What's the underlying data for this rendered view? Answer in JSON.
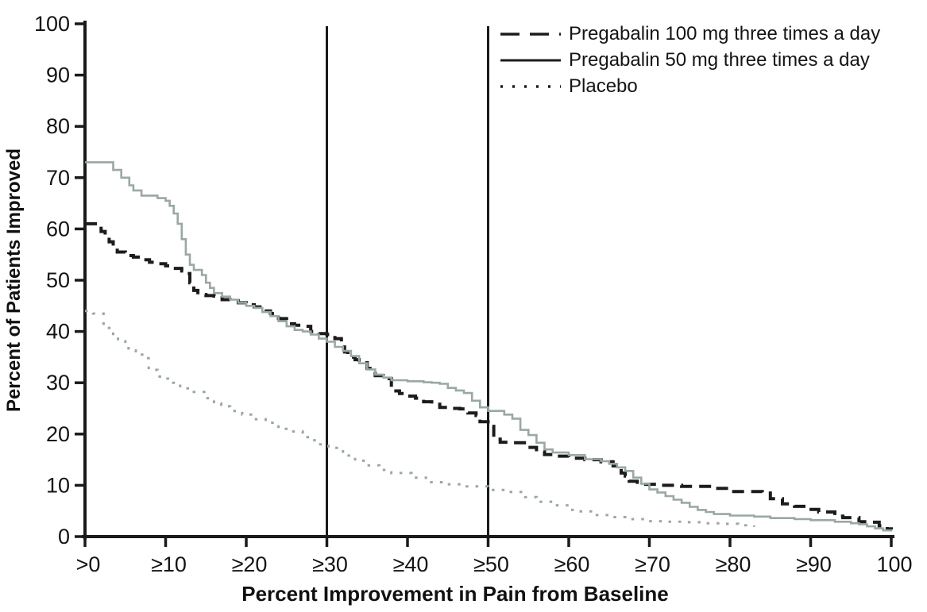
{
  "figure": {
    "background": "#ffffff",
    "axis_color": "#1a1a1a"
  },
  "legend": {
    "sample_color": "#1c1c1c",
    "items": [
      "Pregabalin 100 mg three times a day",
      "Pregabalin 50 mg three times a day",
      "Placebo"
    ]
  },
  "chart_data": {
    "type": "line",
    "title": "",
    "xlabel": "Percent Improvement in Pain from Baseline",
    "ylabel": "Percent of Patients Improved",
    "xlim": [
      0,
      100
    ],
    "ylim": [
      0,
      100
    ],
    "grid": false,
    "legend_position": "top-right",
    "interpolation": "step-after",
    "x_ticks": [
      0,
      10,
      20,
      30,
      40,
      50,
      60,
      70,
      80,
      90,
      100
    ],
    "x_tick_labels": [
      ">0",
      "≥10",
      "≥20",
      "≥30",
      "≥40",
      "≥50",
      "≥60",
      "≥70",
      "≥80",
      "≥90",
      "100"
    ],
    "y_ticks": [
      0,
      10,
      20,
      30,
      40,
      50,
      60,
      70,
      80,
      90,
      100
    ],
    "y_tick_labels": [
      "0",
      "10",
      "20",
      "30",
      "40",
      "50",
      "60",
      "70",
      "80",
      "90",
      "100"
    ],
    "reference_lines_x": [
      30,
      50
    ],
    "series": [
      {
        "id": "pregabalin-100mg",
        "name": "Pregabalin 100 mg three times a day",
        "style": "dashed",
        "color": "#1c1c1c",
        "points": [
          [
            0,
            61
          ],
          [
            1.2,
            61
          ],
          [
            2,
            59.5
          ],
          [
            2.5,
            58.5
          ],
          [
            3,
            57.5
          ],
          [
            3.5,
            56.5
          ],
          [
            4,
            55.5
          ],
          [
            5,
            54.8
          ],
          [
            6,
            54.5
          ],
          [
            7,
            54
          ],
          [
            8,
            53.5
          ],
          [
            9,
            53.2
          ],
          [
            10,
            52.8
          ],
          [
            11,
            52.3
          ],
          [
            12,
            51.8
          ],
          [
            12.5,
            51.3
          ],
          [
            13,
            49.5
          ],
          [
            13.5,
            48
          ],
          [
            14,
            47.2
          ],
          [
            15,
            47
          ],
          [
            16,
            46.9
          ],
          [
            17,
            46.2
          ],
          [
            18,
            46
          ],
          [
            19,
            45.6
          ],
          [
            20,
            45.2
          ],
          [
            21,
            44.8
          ],
          [
            22,
            44
          ],
          [
            23,
            43.5
          ],
          [
            24,
            42.5
          ],
          [
            25,
            41.5
          ],
          [
            26,
            41.2
          ],
          [
            27,
            41
          ],
          [
            28,
            40
          ],
          [
            29,
            39.6
          ],
          [
            30,
            39.4
          ],
          [
            31,
            38.6
          ],
          [
            31.8,
            37.6
          ],
          [
            32.2,
            36
          ],
          [
            32.6,
            35
          ],
          [
            33.5,
            34.5
          ],
          [
            34,
            33.9
          ],
          [
            35,
            32.8
          ],
          [
            36,
            31.4
          ],
          [
            37,
            30.8
          ],
          [
            38,
            28.4
          ],
          [
            39,
            27.9
          ],
          [
            40,
            27.4
          ],
          [
            41,
            27
          ],
          [
            42,
            26.3
          ],
          [
            43,
            25.8
          ],
          [
            44,
            25.2
          ],
          [
            45,
            25
          ],
          [
            46.5,
            24.9
          ],
          [
            47.5,
            24.1
          ],
          [
            48.5,
            23.6
          ],
          [
            49,
            22.4
          ],
          [
            50,
            21.5
          ],
          [
            50.7,
            19
          ],
          [
            51.5,
            18.4
          ],
          [
            53,
            18.3
          ],
          [
            54.5,
            17.4
          ],
          [
            56,
            16.6
          ],
          [
            57,
            16
          ],
          [
            58,
            15.7
          ],
          [
            60,
            15.3
          ],
          [
            62,
            15
          ],
          [
            64,
            14.6
          ],
          [
            65.5,
            13.8
          ],
          [
            66.5,
            12.4
          ],
          [
            67,
            11.8
          ],
          [
            67.5,
            10.8
          ],
          [
            68.5,
            10.2
          ],
          [
            71,
            10
          ],
          [
            74,
            9.8
          ],
          [
            78,
            9.4
          ],
          [
            80,
            8.8
          ],
          [
            84,
            8.5
          ],
          [
            85,
            7.4
          ],
          [
            86.5,
            6.4
          ],
          [
            88,
            5.9
          ],
          [
            89.5,
            5.3
          ],
          [
            91,
            4.8
          ],
          [
            93,
            4
          ],
          [
            94,
            3.7
          ],
          [
            96,
            2.9
          ],
          [
            97.5,
            2.8
          ],
          [
            98.5,
            2.1
          ],
          [
            99.5,
            1.5
          ],
          [
            100,
            1.4
          ]
        ]
      },
      {
        "id": "pregabalin-50mg",
        "name": "Pregabalin 50 mg three times a day",
        "style": "solid",
        "color": "#9aa8a4",
        "points": [
          [
            0,
            73
          ],
          [
            2.8,
            73
          ],
          [
            3.5,
            71.5
          ],
          [
            4.5,
            70
          ],
          [
            5.5,
            68.5
          ],
          [
            6,
            67.5
          ],
          [
            7,
            66.5
          ],
          [
            9,
            66
          ],
          [
            10,
            65.5
          ],
          [
            10.5,
            64.5
          ],
          [
            11,
            63
          ],
          [
            11.5,
            61
          ],
          [
            12,
            58
          ],
          [
            12.5,
            55
          ],
          [
            13,
            53
          ],
          [
            13.5,
            52
          ],
          [
            14.5,
            51
          ],
          [
            15,
            49.5
          ],
          [
            15.5,
            48.5
          ],
          [
            16,
            47.5
          ],
          [
            17,
            46.8
          ],
          [
            18,
            46.2
          ],
          [
            19,
            45.6
          ],
          [
            20,
            45
          ],
          [
            21,
            44.6
          ],
          [
            22,
            43.8
          ],
          [
            23,
            43
          ],
          [
            24,
            42
          ],
          [
            25,
            41
          ],
          [
            26,
            40.3
          ],
          [
            27,
            40
          ],
          [
            28,
            39.4
          ],
          [
            29,
            38.6
          ],
          [
            30,
            38
          ],
          [
            31,
            37
          ],
          [
            32,
            36.2
          ],
          [
            33,
            35.2
          ],
          [
            34,
            33.8
          ],
          [
            35,
            32.6
          ],
          [
            36,
            31.6
          ],
          [
            37,
            31
          ],
          [
            38,
            30.5
          ],
          [
            40,
            30.3
          ],
          [
            42,
            30.1
          ],
          [
            43,
            30
          ],
          [
            44,
            29.8
          ],
          [
            45,
            29
          ],
          [
            46,
            28.5
          ],
          [
            47,
            28
          ],
          [
            48,
            26.5
          ],
          [
            49,
            25.2
          ],
          [
            50,
            24.5
          ],
          [
            52,
            23.8
          ],
          [
            53,
            23
          ],
          [
            54,
            20.8
          ],
          [
            55,
            19.8
          ],
          [
            56,
            18.3
          ],
          [
            57,
            17
          ],
          [
            58,
            16.4
          ],
          [
            60,
            15.9
          ],
          [
            62,
            15.1
          ],
          [
            64,
            14.7
          ],
          [
            65,
            14.2
          ],
          [
            66,
            13.5
          ],
          [
            67,
            12.8
          ],
          [
            68,
            11.5
          ],
          [
            69,
            10.3
          ],
          [
            70,
            9.2
          ],
          [
            71,
            8.6
          ],
          [
            72,
            7.9
          ],
          [
            73,
            7.2
          ],
          [
            74,
            6.6
          ],
          [
            75,
            5.8
          ],
          [
            76,
            5.2
          ],
          [
            77,
            4.8
          ],
          [
            78,
            4.4
          ],
          [
            80,
            4.1
          ],
          [
            83,
            3.9
          ],
          [
            85,
            3.6
          ],
          [
            88,
            3.4
          ],
          [
            90,
            3.2
          ],
          [
            93,
            2.9
          ],
          [
            95,
            2.6
          ],
          [
            96,
            2.4
          ],
          [
            97,
            2
          ],
          [
            98,
            1.6
          ],
          [
            99,
            1.2
          ],
          [
            100,
            1
          ]
        ]
      },
      {
        "id": "placebo",
        "name": "Placebo",
        "style": "dotted",
        "color": "#9aa8a4",
        "points": [
          [
            0,
            44
          ],
          [
            1,
            43.5
          ],
          [
            2.3,
            41.5
          ],
          [
            2.7,
            40.7
          ],
          [
            3.5,
            39.5
          ],
          [
            4.1,
            38.5
          ],
          [
            5,
            37
          ],
          [
            5.4,
            36.3
          ],
          [
            6.3,
            35.5
          ],
          [
            7.1,
            34.8
          ],
          [
            7.9,
            32.5
          ],
          [
            9,
            31.2
          ],
          [
            9.5,
            30.8
          ],
          [
            10.3,
            30
          ],
          [
            11.8,
            28.9
          ],
          [
            13.5,
            28.2
          ],
          [
            14.8,
            27
          ],
          [
            16,
            26
          ],
          [
            16.9,
            25.4
          ],
          [
            18,
            24.5
          ],
          [
            19.5,
            23.8
          ],
          [
            21,
            22.9
          ],
          [
            22.4,
            22.2
          ],
          [
            24,
            21
          ],
          [
            25.4,
            20.5
          ],
          [
            27,
            19.4
          ],
          [
            28,
            18.8
          ],
          [
            29,
            18
          ],
          [
            30.2,
            17.3
          ],
          [
            32,
            15.8
          ],
          [
            33.5,
            14.8
          ],
          [
            34.9,
            13.9
          ],
          [
            36.5,
            13
          ],
          [
            38,
            12.4
          ],
          [
            40.5,
            11.5
          ],
          [
            42.3,
            10.6
          ],
          [
            44.7,
            10.2
          ],
          [
            47.2,
            9.8
          ],
          [
            50,
            9.1
          ],
          [
            52.3,
            8.7
          ],
          [
            54.6,
            7.7
          ],
          [
            56,
            6.8
          ],
          [
            57.8,
            6.1
          ],
          [
            60,
            5.2
          ],
          [
            61.3,
            4.9
          ],
          [
            63,
            4.2
          ],
          [
            65.4,
            3.8
          ],
          [
            67,
            3.4
          ],
          [
            69.6,
            3
          ],
          [
            72,
            2.9
          ],
          [
            74.5,
            2.8
          ],
          [
            77,
            2.6
          ],
          [
            79.2,
            2.5
          ],
          [
            81,
            2.2
          ],
          [
            83,
            1.9
          ]
        ]
      }
    ]
  }
}
